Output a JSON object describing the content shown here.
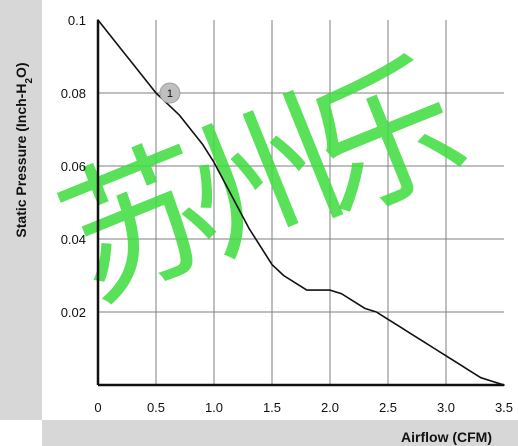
{
  "chart_data": {
    "type": "line",
    "xlabel": "Airflow (CFM)",
    "ylabel": "Static Pressure (Inch-H2O)",
    "xlim": [
      0,
      3.5
    ],
    "ylim": [
      0,
      0.1
    ],
    "x_ticks": [
      {
        "value": 0,
        "label": "0"
      },
      {
        "value": 0.5,
        "label": "0.5"
      },
      {
        "value": 1.0,
        "label": "1.0"
      },
      {
        "value": 1.5,
        "label": "1.5"
      },
      {
        "value": 2.0,
        "label": "2.0"
      },
      {
        "value": 2.5,
        "label": "2.5"
      },
      {
        "value": 3.0,
        "label": "3.0"
      },
      {
        "value": 3.5,
        "label": "3.5"
      }
    ],
    "y_ticks": [
      {
        "value": 0.02,
        "label": "0.02"
      },
      {
        "value": 0.04,
        "label": "0.04"
      },
      {
        "value": 0.06,
        "label": "0.06"
      },
      {
        "value": 0.08,
        "label": "0.08"
      },
      {
        "value": 0.1,
        "label": "0.1"
      }
    ],
    "grid": true,
    "series": [
      {
        "points": [
          {
            "x": 0.0,
            "y": 0.1
          },
          {
            "x": 0.1,
            "y": 0.096
          },
          {
            "x": 0.2,
            "y": 0.092
          },
          {
            "x": 0.3,
            "y": 0.088
          },
          {
            "x": 0.4,
            "y": 0.084
          },
          {
            "x": 0.5,
            "y": 0.08
          },
          {
            "x": 0.6,
            "y": 0.077
          },
          {
            "x": 0.7,
            "y": 0.074
          },
          {
            "x": 0.8,
            "y": 0.07
          },
          {
            "x": 0.9,
            "y": 0.066
          },
          {
            "x": 1.0,
            "y": 0.061
          },
          {
            "x": 1.1,
            "y": 0.055
          },
          {
            "x": 1.2,
            "y": 0.049
          },
          {
            "x": 1.3,
            "y": 0.043
          },
          {
            "x": 1.4,
            "y": 0.038
          },
          {
            "x": 1.5,
            "y": 0.033
          },
          {
            "x": 1.6,
            "y": 0.03
          },
          {
            "x": 1.7,
            "y": 0.028
          },
          {
            "x": 1.8,
            "y": 0.026
          },
          {
            "x": 1.9,
            "y": 0.026
          },
          {
            "x": 2.0,
            "y": 0.026
          },
          {
            "x": 2.1,
            "y": 0.025
          },
          {
            "x": 2.2,
            "y": 0.023
          },
          {
            "x": 2.3,
            "y": 0.021
          },
          {
            "x": 2.4,
            "y": 0.02
          },
          {
            "x": 2.5,
            "y": 0.018
          },
          {
            "x": 2.6,
            "y": 0.016
          },
          {
            "x": 2.7,
            "y": 0.014
          },
          {
            "x": 2.8,
            "y": 0.012
          },
          {
            "x": 2.9,
            "y": 0.01
          },
          {
            "x": 3.0,
            "y": 0.008
          },
          {
            "x": 3.1,
            "y": 0.006
          },
          {
            "x": 3.2,
            "y": 0.004
          },
          {
            "x": 3.3,
            "y": 0.002
          },
          {
            "x": 3.4,
            "y": 0.001
          },
          {
            "x": 3.5,
            "y": 0.0
          }
        ]
      }
    ],
    "annotations": [
      {
        "label": "1",
        "x": 0.62,
        "y": 0.08
      }
    ]
  },
  "colors": {
    "background": "#ffffff",
    "side_band": "#d7d7d7",
    "axis_line": "#111111",
    "grid_line": "#7f7f7f",
    "series_line": "#111111",
    "marker_fill": "#bfbfbf",
    "marker_stroke": "#9f9f9f",
    "watermark": "#3ddc3d"
  },
  "watermark": {
    "text": "苏州乐"
  }
}
